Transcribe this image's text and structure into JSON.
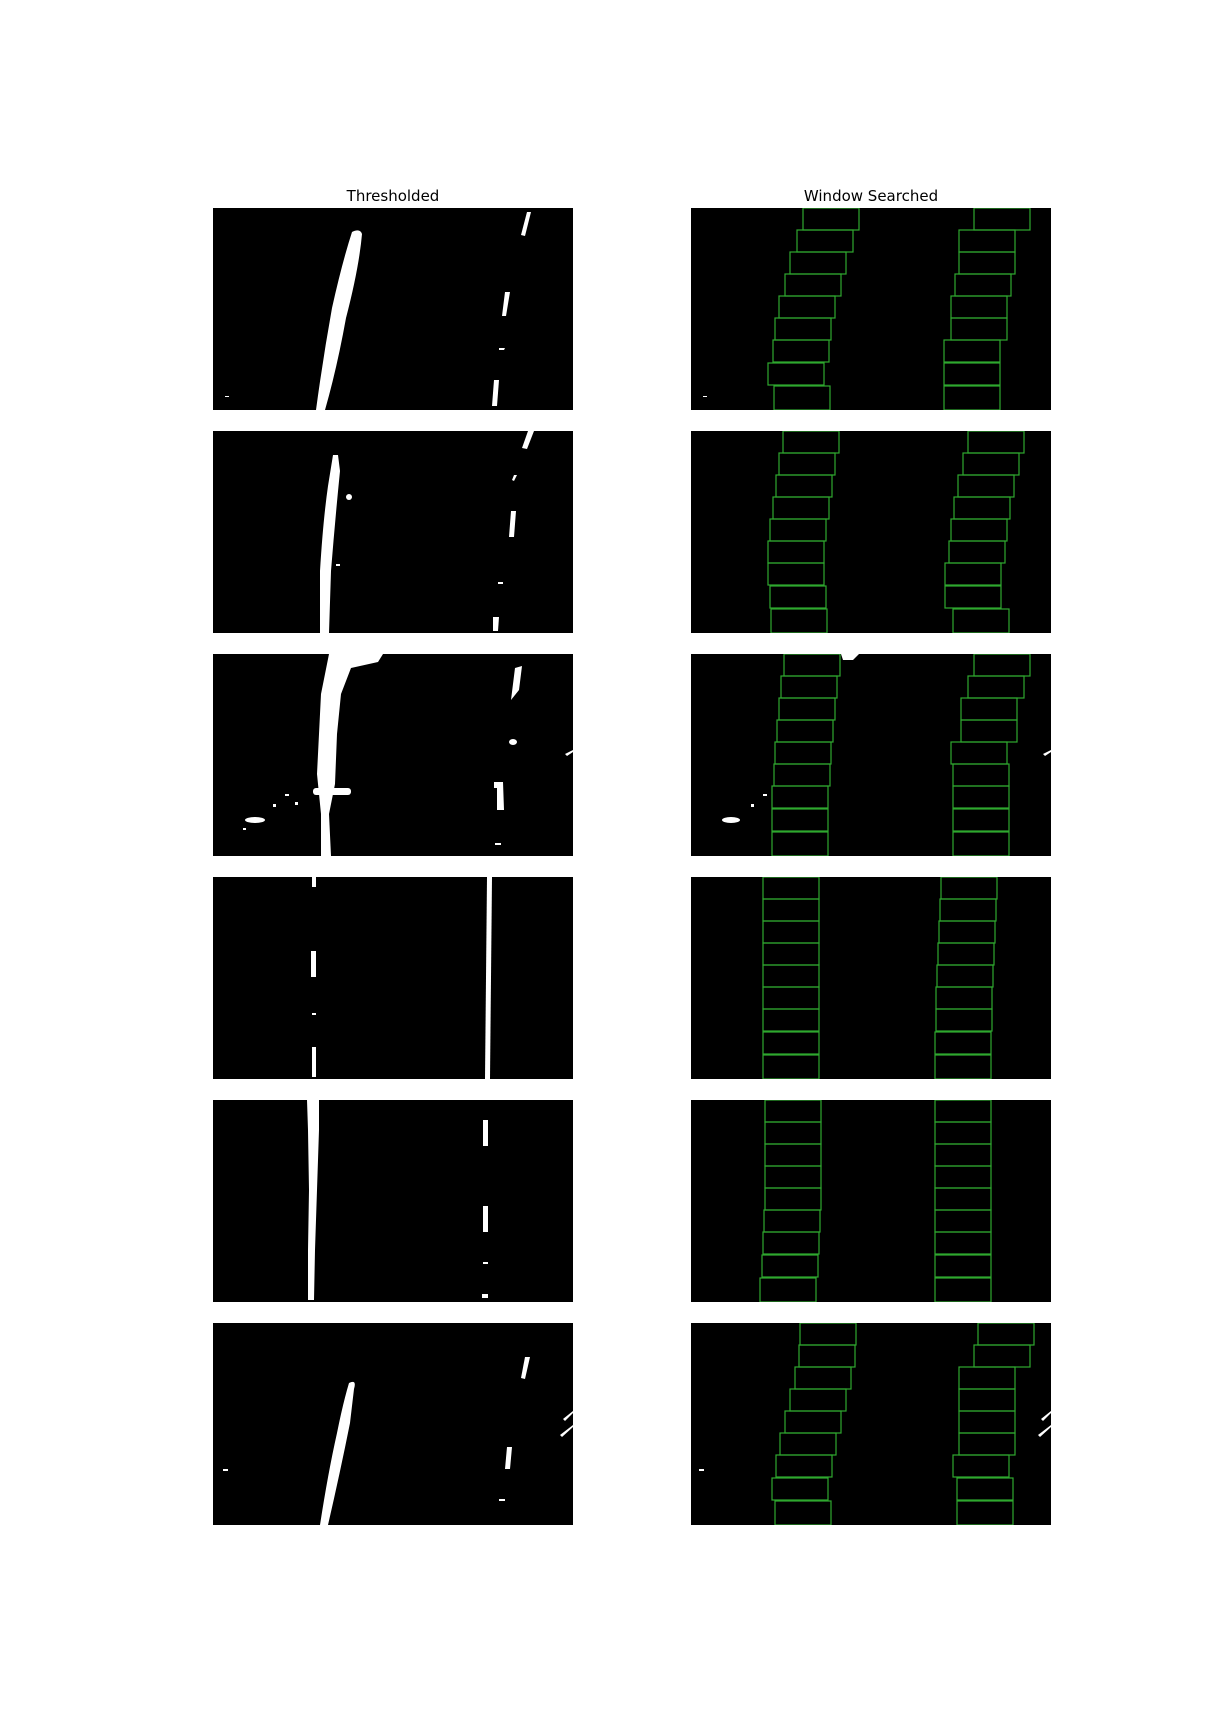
{
  "titles": {
    "left": "Thresholded",
    "right": "Window Searched"
  },
  "colors": {
    "background": "#000000",
    "lane_pixels": "#ffffff",
    "window_boxes": "#2fa82f"
  },
  "rows": [
    {
      "id": 1
    },
    {
      "id": 2
    },
    {
      "id": 3
    },
    {
      "id": 4
    },
    {
      "id": 5
    },
    {
      "id": 6
    }
  ]
}
